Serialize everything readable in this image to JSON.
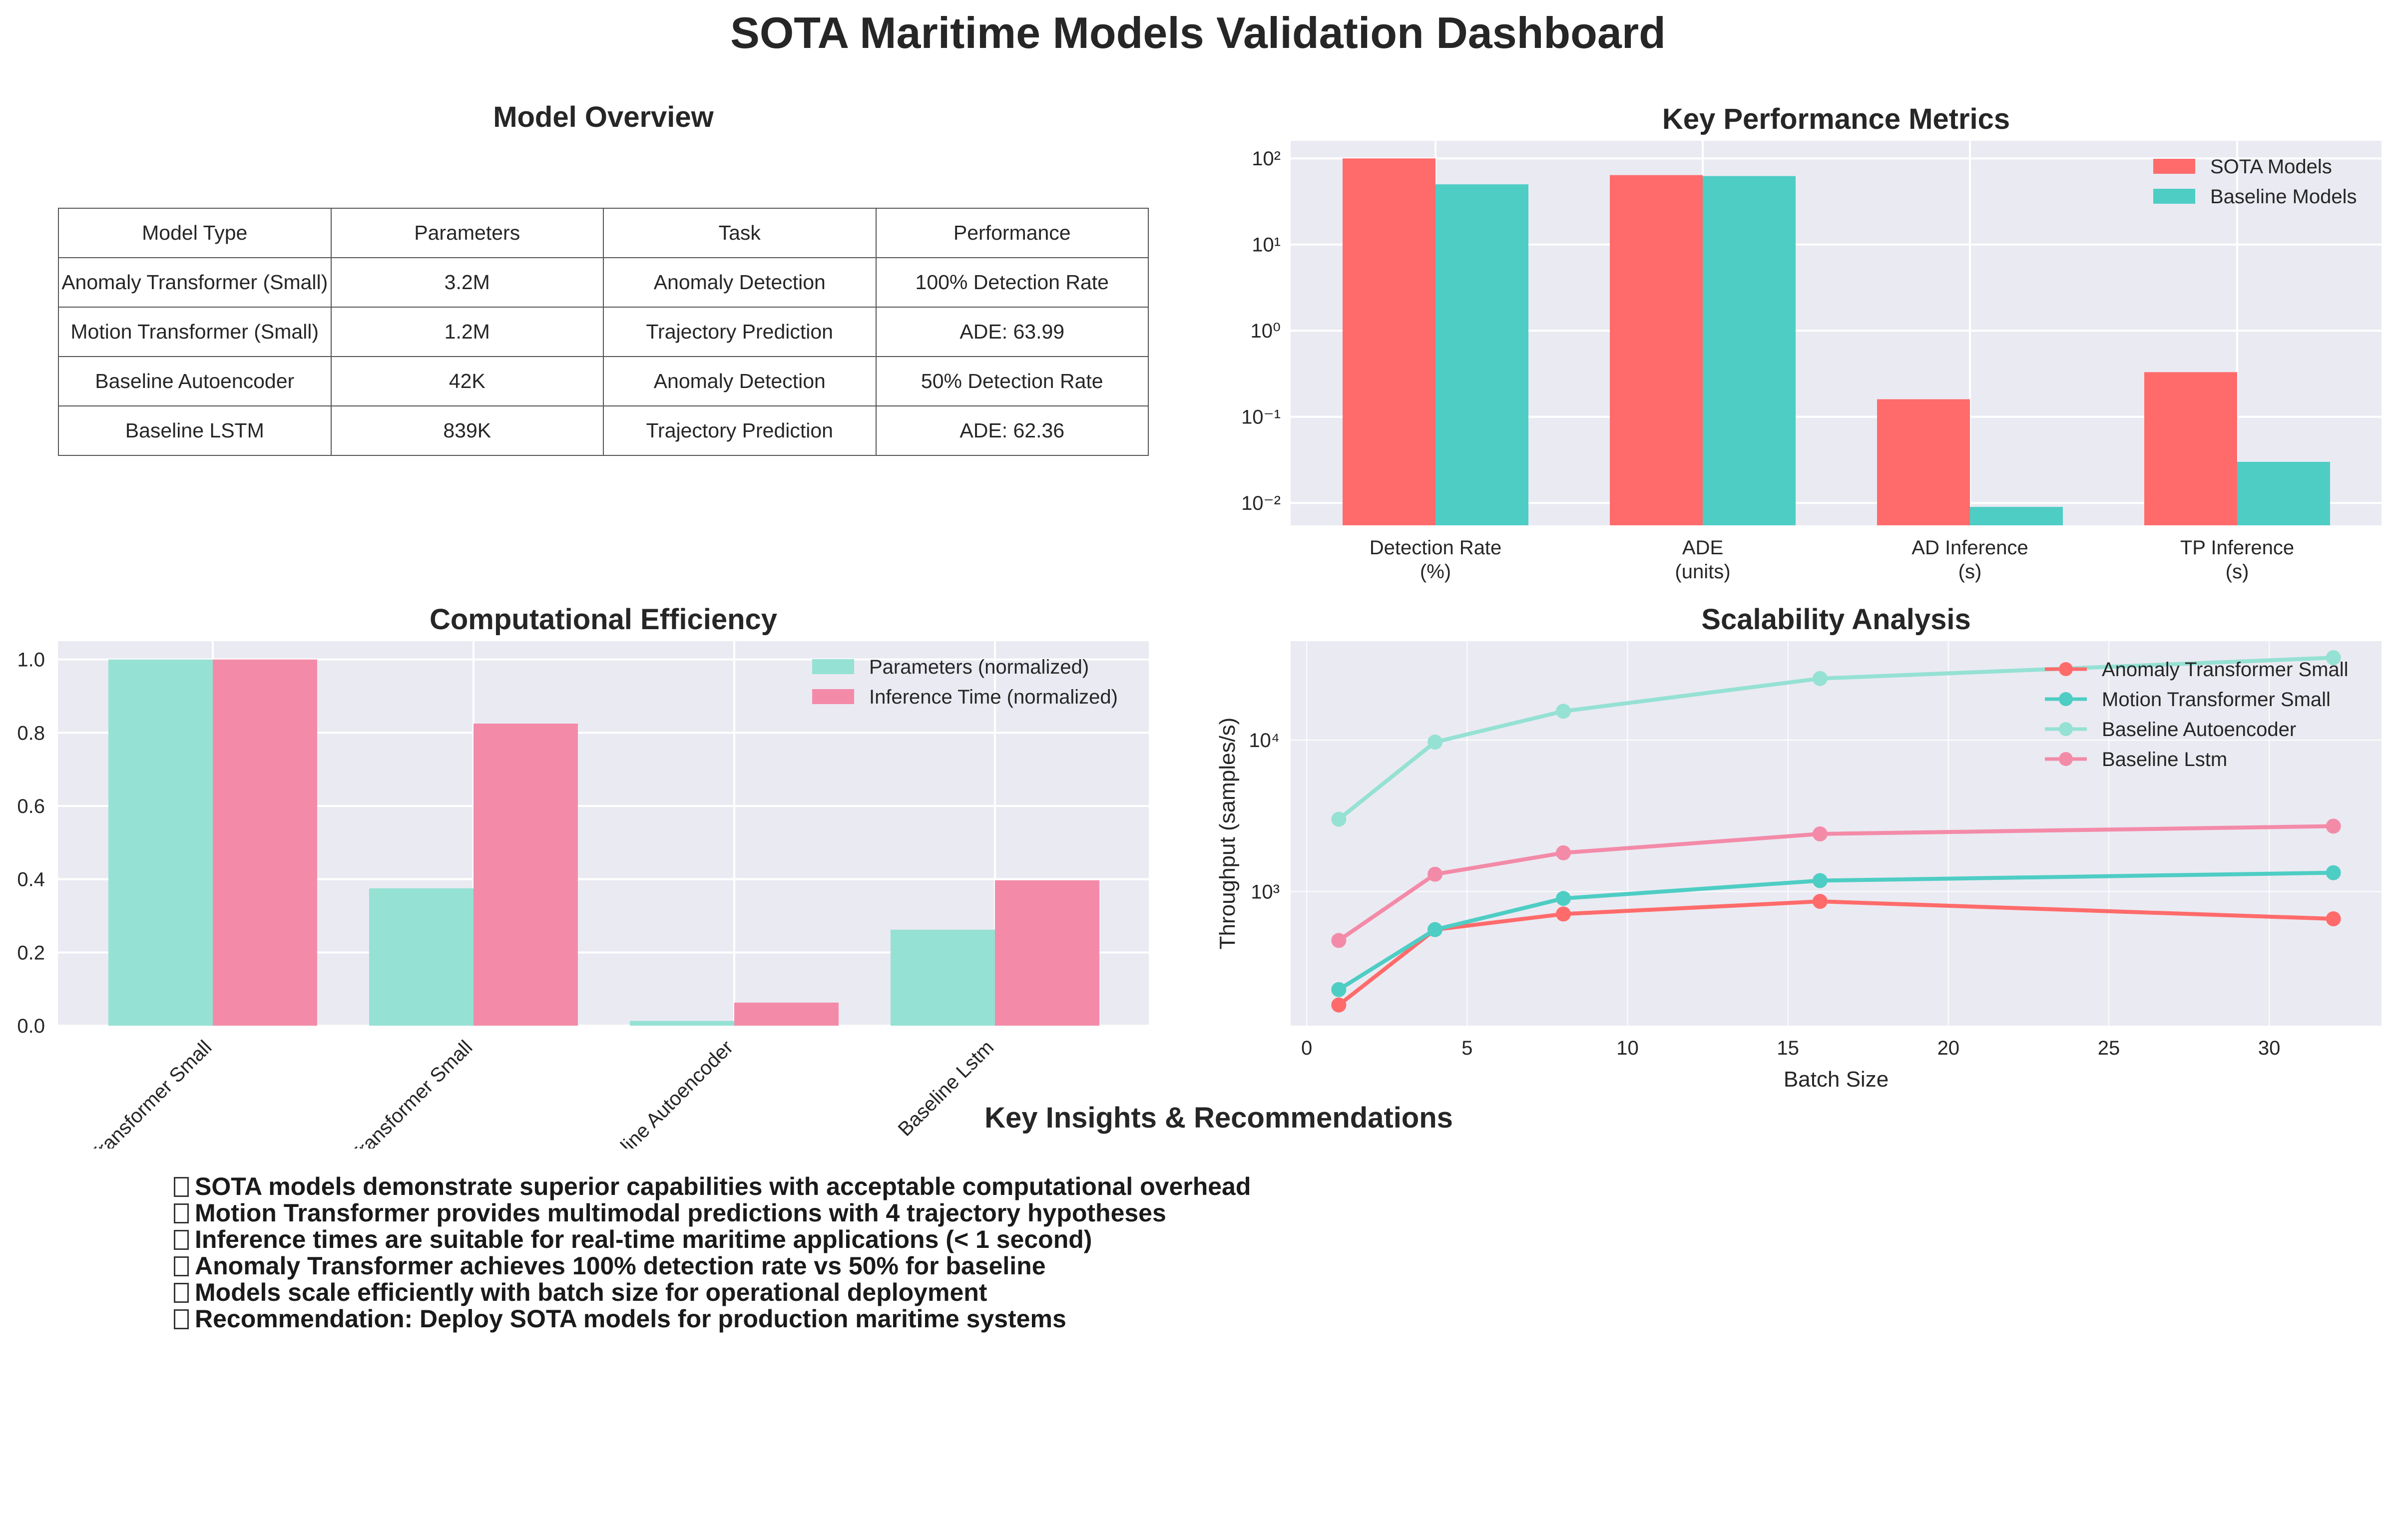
{
  "title": "SOTA Maritime Models Validation Dashboard",
  "model_overview": {
    "title": "Model Overview",
    "headers": [
      "Model Type",
      "Parameters",
      "Task",
      "Performance"
    ],
    "rows": [
      [
        "Anomaly Transformer (Small)",
        "3.2M",
        "Anomaly Detection",
        "100% Detection Rate"
      ],
      [
        "Motion Transformer (Small)",
        "1.2M",
        "Trajectory Prediction",
        "ADE: 63.99"
      ],
      [
        "Baseline Autoencoder",
        "42K",
        "Anomaly Detection",
        "50% Detection Rate"
      ],
      [
        "Baseline LSTM",
        "839K",
        "Trajectory Prediction",
        "ADE: 62.36"
      ]
    ]
  },
  "chart_data": [
    {
      "id": "key-metrics",
      "type": "bar",
      "title": "Key Performance Metrics",
      "categories": [
        "Detection Rate\n(%)",
        "ADE\n(units)",
        "AD Inference\n(s)",
        "TP Inference\n(s)"
      ],
      "series": [
        {
          "name": "SOTA Models",
          "values": [
            100,
            63.99,
            0.16,
            0.33
          ],
          "color": "#ff6b6b"
        },
        {
          "name": "Baseline Models",
          "values": [
            50,
            62.36,
            0.009,
            0.03
          ],
          "color": "#4ecdc4"
        }
      ],
      "yscale": "log",
      "ylim": [
        0.0055,
        160
      ],
      "yticks": [
        0.01,
        0.1,
        1,
        10,
        100
      ],
      "ytick_labels": [
        "10⁻²",
        "10⁻¹",
        "10⁰",
        "10¹",
        "10²"
      ],
      "legend": "top-right",
      "grid": true
    },
    {
      "id": "computational-efficiency",
      "type": "bar",
      "title": "Computational Efficiency",
      "categories": [
        "Anomaly Transformer Small",
        "Motion Transformer Small",
        "Baseline Autoencoder",
        "Baseline Lstm"
      ],
      "series": [
        {
          "name": "Parameters (normalized)",
          "values": [
            1.0,
            0.375,
            0.013,
            0.262
          ],
          "color": "#95e1d3"
        },
        {
          "name": "Inference Time (normalized)",
          "values": [
            1.0,
            0.825,
            0.063,
            0.397
          ],
          "color": "#f38ba8"
        }
      ],
      "ylim": [
        0,
        1.05
      ],
      "yticks": [
        0.0,
        0.2,
        0.4,
        0.6,
        0.8,
        1.0
      ],
      "ytick_labels": [
        "0.0",
        "0.2",
        "0.4",
        "0.6",
        "0.8",
        "1.0"
      ],
      "legend": "top-right",
      "grid": true
    },
    {
      "id": "scalability",
      "type": "line",
      "title": "Scalability Analysis",
      "xlabel": "Batch Size",
      "ylabel": "Throughput (samples/s)",
      "yscale": "log",
      "x": [
        1,
        4,
        8,
        16,
        32
      ],
      "xlim": [
        -0.5,
        33.5
      ],
      "ylim": [
        130,
        45000
      ],
      "xticks": [
        0,
        5,
        10,
        15,
        20,
        25,
        30
      ],
      "xtick_labels": [
        "0",
        "5",
        "10",
        "15",
        "20",
        "25",
        "30"
      ],
      "yticks": [
        1000,
        10000
      ],
      "ytick_labels": [
        "10³",
        "10⁴"
      ],
      "series": [
        {
          "name": "Anomaly Transformer Small",
          "values": [
            178,
            560,
            710,
            860,
            660
          ],
          "color": "#ff6b6b"
        },
        {
          "name": "Motion Transformer Small",
          "values": [
            225,
            560,
            900,
            1180,
            1330
          ],
          "color": "#4ecdc4"
        },
        {
          "name": "Baseline Autoencoder",
          "values": [
            3000,
            9700,
            15500,
            25500,
            35000
          ],
          "color": "#95e1d3"
        },
        {
          "name": "Baseline Lstm",
          "values": [
            475,
            1300,
            1800,
            2400,
            2700
          ],
          "color": "#f38ba8"
        }
      ],
      "legend": "top-right",
      "grid": true
    }
  ],
  "insights": {
    "title": "Key Insights & Recommendations",
    "items": [
      "SOTA models demonstrate superior capabilities with acceptable computational overhead",
      "Motion Transformer provides multimodal predictions with 4 trajectory hypotheses",
      "Inference times are suitable for real-time maritime applications (< 1 second)",
      "Anomaly Transformer achieves 100% detection rate vs 50% for baseline",
      "Models scale efficiently with batch size for operational deployment",
      "Recommendation: Deploy SOTA models for production maritime systems"
    ]
  }
}
